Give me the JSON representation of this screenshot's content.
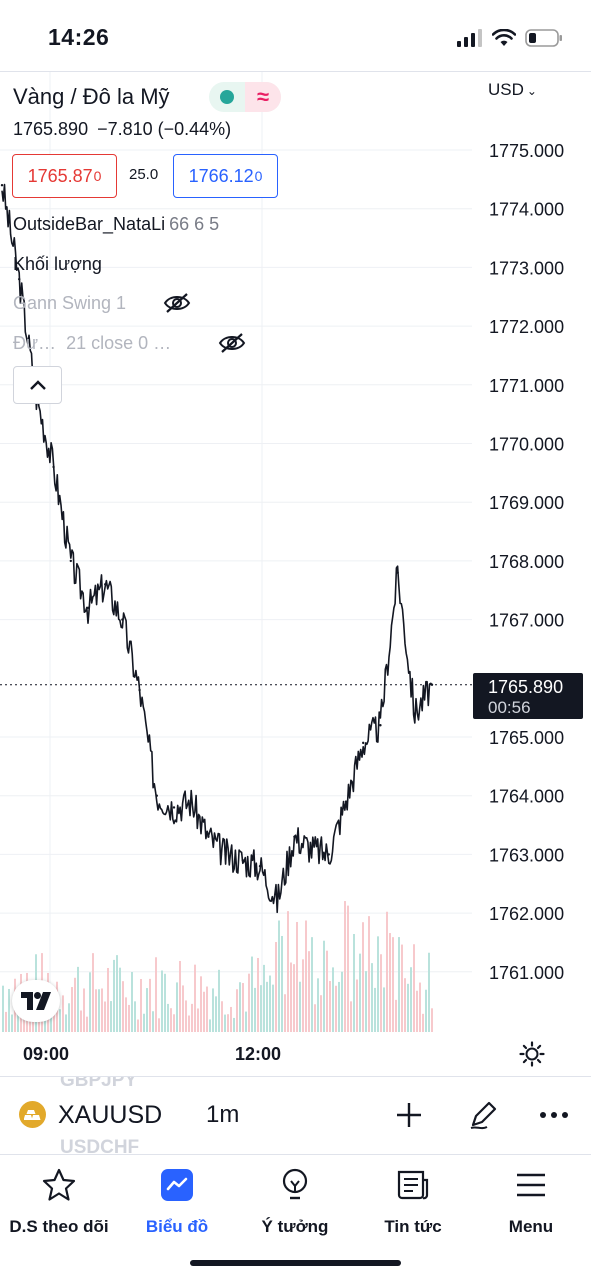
{
  "status_bar": {
    "time": "14:26"
  },
  "symbol": {
    "title": "Vàng / Đô la Mỹ",
    "last": "1765.890",
    "change": "−7.810 (−0.44%)",
    "bid": "1765.87",
    "bid_sup": "0",
    "spread": "25.0",
    "ask": "1766.12",
    "ask_sup": "0"
  },
  "indicators": [
    {
      "name": "OutsideBar_NataLi",
      "values": "66 6 5",
      "visible": true
    },
    {
      "name": "Khối lượng",
      "values": "",
      "visible": true
    },
    {
      "name": "Gann Swing 1",
      "values": "",
      "visible": false
    },
    {
      "name": "Đư…",
      "values": "21 close 0 …",
      "visible": false
    }
  ],
  "price_axis": {
    "currency": "USD",
    "ticks": [
      "1775.000",
      "1774.000",
      "1773.000",
      "1772.000",
      "1771.000",
      "1770.000",
      "1769.000",
      "1768.000",
      "1767.000",
      "1765.000",
      "1764.000",
      "1763.000",
      "1762.000",
      "1761.000"
    ],
    "last_price_label": "1765.890",
    "countdown": "00:56"
  },
  "time_axis": {
    "labels": [
      "09:00",
      "12:00"
    ]
  },
  "chart_data": {
    "type": "line",
    "title": "",
    "xlabel": "",
    "ylabel": "",
    "x": [
      "08:15",
      "08:30",
      "08:45",
      "09:00",
      "09:15",
      "09:30",
      "09:45",
      "10:00",
      "10:15",
      "10:30",
      "10:45",
      "11:00",
      "11:15",
      "11:30",
      "11:45",
      "12:00",
      "12:15",
      "12:30",
      "12:45",
      "13:00",
      "13:15",
      "13:30",
      "13:45",
      "14:00",
      "14:15",
      "14:26"
    ],
    "series": [
      {
        "values": [
          1774.4,
          1772.8,
          1770.8,
          1769.6,
          1768.0,
          1767.2,
          1767.6,
          1767.0,
          1765.8,
          1764.0,
          1763.8,
          1763.9,
          1763.3,
          1763.0,
          1762.9,
          1762.8,
          1762.2,
          1763.3,
          1763.1,
          1763.0,
          1763.9,
          1764.9,
          1765.2,
          1767.8,
          1765.4,
          1765.89
        ]
      }
    ],
    "ylim": [
      1760.3,
      1775.5
    ],
    "grid": true,
    "volume_bars": true
  },
  "symbol_bar": {
    "symbol": "XAUUSD",
    "timeframe": "1m",
    "ghost_above": "GBPJPY",
    "ghost_below": "USDCHF"
  },
  "tabs": [
    {
      "label": "D.S theo dõi",
      "icon": "star-icon",
      "active": false
    },
    {
      "label": "Biểu đồ",
      "icon": "chart-icon",
      "active": true
    },
    {
      "label": "Ý tưởng",
      "icon": "lightbulb-icon",
      "active": false
    },
    {
      "label": "Tin tức",
      "icon": "news-icon",
      "active": false
    },
    {
      "label": "Menu",
      "icon": "menu-icon",
      "active": false
    }
  ],
  "colors": {
    "up": "#26a69a",
    "down": "#e53935",
    "accent": "#2962ff",
    "candle": "#131722"
  }
}
